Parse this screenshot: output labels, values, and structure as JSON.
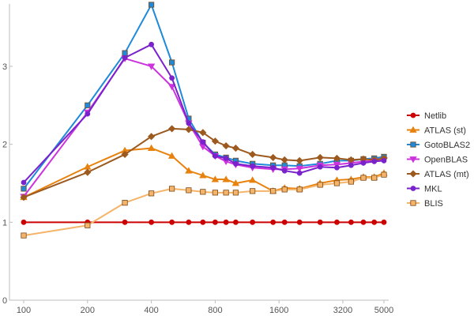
{
  "chart_data": {
    "type": "line",
    "title": "",
    "xlabel": "",
    "ylabel": "",
    "x_scale": "log",
    "xlim": [
      100,
      5000
    ],
    "ylim": [
      0,
      3.8
    ],
    "grid": false,
    "legend_position": "right",
    "x_ticks": [
      {
        "value": 100,
        "label": "100"
      },
      {
        "value": 200,
        "label": "200"
      },
      {
        "value": 400,
        "label": "400"
      },
      {
        "value": 800,
        "label": "800"
      },
      {
        "value": 1600,
        "label": "1600"
      },
      {
        "value": 3200,
        "label": "3200"
      },
      {
        "value": 5000,
        "label": "5000"
      }
    ],
    "y_ticks": [
      {
        "value": 0,
        "label": "0"
      },
      {
        "value": 1,
        "label": "1"
      },
      {
        "value": 2,
        "label": "2"
      },
      {
        "value": 3,
        "label": "3"
      }
    ],
    "x": [
      100,
      200,
      300,
      400,
      500,
      600,
      700,
      800,
      900,
      1000,
      1200,
      1500,
      1700,
      2000,
      2500,
      3000,
      3500,
      4000,
      4500,
      5000
    ],
    "series": [
      {
        "name": "Netlib",
        "color": "#cc0000",
        "marker": "circle",
        "values": [
          1,
          1,
          1,
          1,
          1,
          1,
          1,
          1,
          1,
          1,
          1,
          1,
          1,
          1,
          1,
          1,
          1,
          1,
          1,
          1
        ]
      },
      {
        "name": "ATLAS (st)",
        "color": "#e8820e",
        "marker": "triangle",
        "values": [
          1.32,
          1.71,
          1.92,
          1.95,
          1.85,
          1.66,
          1.6,
          1.55,
          1.55,
          1.5,
          1.54,
          1.4,
          1.44,
          1.43,
          1.5,
          1.54,
          1.55,
          1.58,
          1.58,
          1.63
        ]
      },
      {
        "name": "GotoBLAS2",
        "color": "#1f8ad9",
        "marker": "square",
        "values": [
          1.43,
          2.5,
          3.17,
          3.79,
          3.05,
          2.33,
          2.02,
          1.87,
          1.83,
          1.79,
          1.75,
          1.73,
          1.73,
          1.72,
          1.75,
          1.79,
          1.79,
          1.81,
          1.82,
          1.84
        ]
      },
      {
        "name": "OpenBLAS",
        "color": "#cc33dd",
        "marker": "triangle-down",
        "values": [
          1.33,
          2.41,
          3.1,
          3.0,
          2.74,
          2.27,
          1.97,
          1.85,
          1.78,
          1.74,
          1.7,
          1.68,
          1.68,
          1.69,
          1.73,
          1.74,
          1.76,
          1.78,
          1.79,
          1.8
        ]
      },
      {
        "name": "ATLAS (mt)",
        "color": "#9c5a1f",
        "marker": "diamond",
        "values": [
          1.32,
          1.64,
          1.87,
          2.1,
          2.2,
          2.19,
          2.15,
          2.04,
          1.98,
          1.95,
          1.87,
          1.83,
          1.8,
          1.79,
          1.83,
          1.82,
          1.8,
          1.81,
          1.8,
          1.82
        ]
      },
      {
        "name": "MKL",
        "color": "#7a22cc",
        "marker": "circle",
        "values": [
          1.51,
          2.39,
          3.11,
          3.28,
          2.85,
          2.27,
          2.03,
          1.85,
          1.82,
          1.75,
          1.72,
          1.7,
          1.66,
          1.63,
          1.71,
          1.7,
          1.73,
          1.76,
          1.78,
          1.79
        ]
      },
      {
        "name": "BLIS",
        "color": "#f4b46a",
        "marker": "square",
        "values": [
          0.83,
          0.96,
          1.25,
          1.37,
          1.43,
          1.41,
          1.39,
          1.38,
          1.38,
          1.38,
          1.4,
          1.4,
          1.42,
          1.42,
          1.48,
          1.5,
          1.52,
          1.57,
          1.57,
          1.61
        ]
      }
    ]
  }
}
